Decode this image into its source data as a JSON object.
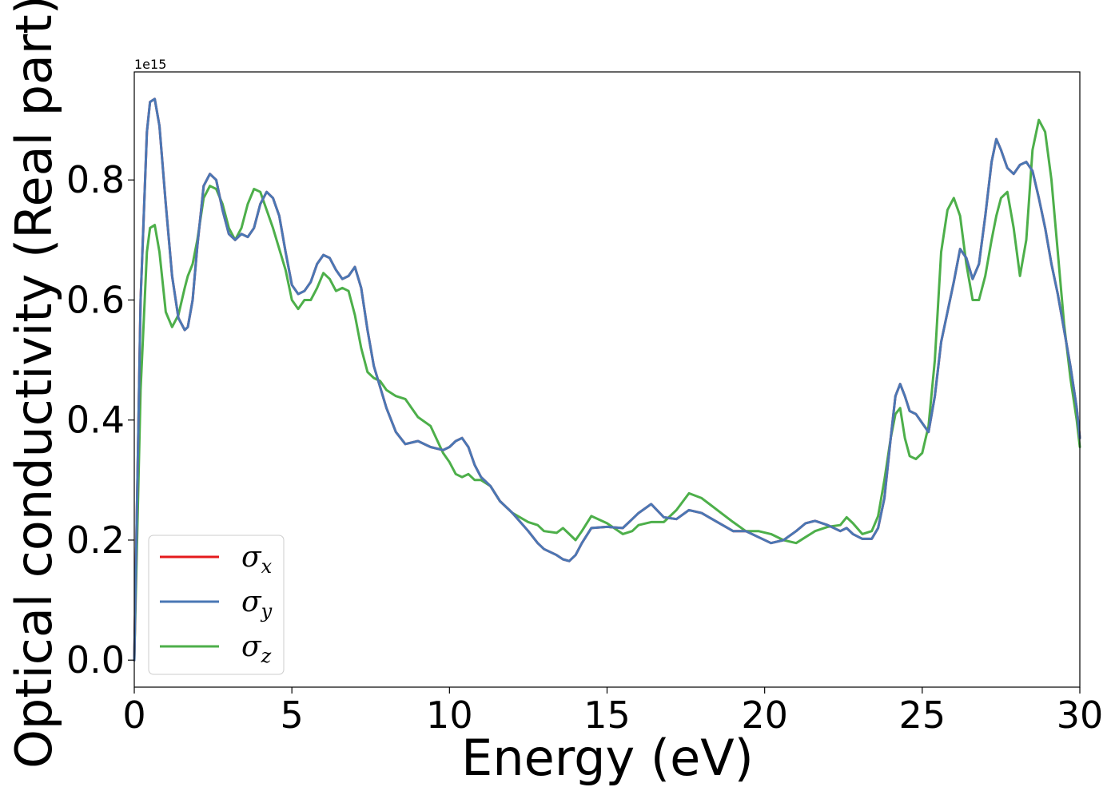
{
  "chart_data": {
    "type": "line",
    "title": "",
    "xlabel": "Energy (eV)",
    "ylabel": "Optical conductivity (Real part)",
    "y_offset_label": "1e15",
    "xlim": [
      0,
      30
    ],
    "ylim": [
      -0.045,
      0.98
    ],
    "x_ticks": [
      0,
      5,
      10,
      15,
      20,
      25,
      30
    ],
    "x_tick_labels": [
      "0",
      "5",
      "10",
      "15",
      "20",
      "25",
      "30"
    ],
    "y_ticks": [
      0.0,
      0.2,
      0.4,
      0.6,
      0.8
    ],
    "y_tick_labels": [
      "0.0",
      "0.2",
      "0.4",
      "0.6",
      "0.8"
    ],
    "grid": false,
    "legend_position": "lower-left",
    "x": [
      0,
      0.2,
      0.4,
      0.5,
      0.65,
      0.8,
      1.0,
      1.2,
      1.4,
      1.6,
      1.7,
      1.85,
      2.0,
      2.2,
      2.4,
      2.6,
      2.8,
      3.0,
      3.2,
      3.4,
      3.6,
      3.8,
      4.0,
      4.2,
      4.4,
      4.6,
      4.8,
      5.0,
      5.2,
      5.4,
      5.6,
      5.8,
      6.0,
      6.2,
      6.4,
      6.6,
      6.8,
      7.0,
      7.2,
      7.4,
      7.6,
      7.8,
      8.0,
      8.3,
      8.6,
      9.0,
      9.4,
      9.8,
      10.0,
      10.2,
      10.4,
      10.6,
      10.8,
      11.0,
      11.3,
      11.6,
      12.0,
      12.5,
      12.8,
      13.0,
      13.4,
      13.6,
      13.8,
      14.0,
      14.2,
      14.5,
      15.0,
      15.5,
      15.8,
      16.0,
      16.4,
      16.8,
      17.2,
      17.6,
      18.0,
      18.5,
      19.0,
      19.4,
      19.8,
      20.2,
      20.6,
      21.0,
      21.3,
      21.6,
      22.0,
      22.4,
      22.6,
      22.8,
      23.1,
      23.4,
      23.6,
      23.8,
      24.0,
      24.15,
      24.3,
      24.45,
      24.6,
      24.8,
      25.0,
      25.2,
      25.4,
      25.6,
      25.8,
      26.0,
      26.2,
      26.4,
      26.6,
      26.8,
      27.0,
      27.2,
      27.35,
      27.5,
      27.7,
      27.9,
      28.1,
      28.3,
      28.5,
      28.7,
      28.9,
      29.1,
      29.3,
      29.5,
      29.7,
      29.9,
      30.0
    ],
    "series": [
      {
        "name": "σx",
        "color": "#e41a1c",
        "values": [
          0.0,
          0.6,
          0.88,
          0.93,
          0.935,
          0.89,
          0.76,
          0.64,
          0.57,
          0.55,
          0.555,
          0.6,
          0.69,
          0.79,
          0.81,
          0.8,
          0.75,
          0.71,
          0.7,
          0.71,
          0.705,
          0.72,
          0.76,
          0.78,
          0.77,
          0.74,
          0.68,
          0.625,
          0.61,
          0.615,
          0.63,
          0.66,
          0.675,
          0.67,
          0.65,
          0.635,
          0.64,
          0.655,
          0.62,
          0.55,
          0.49,
          0.455,
          0.42,
          0.38,
          0.36,
          0.365,
          0.355,
          0.35,
          0.355,
          0.365,
          0.37,
          0.355,
          0.325,
          0.305,
          0.29,
          0.265,
          0.245,
          0.215,
          0.195,
          0.185,
          0.175,
          0.168,
          0.165,
          0.175,
          0.195,
          0.22,
          0.222,
          0.22,
          0.235,
          0.245,
          0.26,
          0.238,
          0.235,
          0.25,
          0.245,
          0.23,
          0.215,
          0.215,
          0.205,
          0.195,
          0.2,
          0.215,
          0.228,
          0.232,
          0.225,
          0.215,
          0.22,
          0.21,
          0.202,
          0.202,
          0.22,
          0.27,
          0.37,
          0.44,
          0.46,
          0.44,
          0.415,
          0.41,
          0.395,
          0.38,
          0.44,
          0.53,
          0.58,
          0.63,
          0.685,
          0.67,
          0.635,
          0.66,
          0.74,
          0.83,
          0.868,
          0.85,
          0.82,
          0.81,
          0.825,
          0.83,
          0.815,
          0.77,
          0.72,
          0.66,
          0.61,
          0.55,
          0.49,
          0.42,
          0.37
        ]
      },
      {
        "name": "σy",
        "color": "#4a77b4",
        "values": [
          0.0,
          0.6,
          0.88,
          0.93,
          0.935,
          0.89,
          0.76,
          0.64,
          0.57,
          0.55,
          0.555,
          0.6,
          0.69,
          0.79,
          0.81,
          0.8,
          0.75,
          0.71,
          0.7,
          0.71,
          0.705,
          0.72,
          0.76,
          0.78,
          0.77,
          0.74,
          0.68,
          0.625,
          0.61,
          0.615,
          0.63,
          0.66,
          0.675,
          0.67,
          0.65,
          0.635,
          0.64,
          0.655,
          0.62,
          0.55,
          0.49,
          0.455,
          0.42,
          0.38,
          0.36,
          0.365,
          0.355,
          0.35,
          0.355,
          0.365,
          0.37,
          0.355,
          0.325,
          0.305,
          0.29,
          0.265,
          0.245,
          0.215,
          0.195,
          0.185,
          0.175,
          0.168,
          0.165,
          0.175,
          0.195,
          0.22,
          0.222,
          0.22,
          0.235,
          0.245,
          0.26,
          0.238,
          0.235,
          0.25,
          0.245,
          0.23,
          0.215,
          0.215,
          0.205,
          0.195,
          0.2,
          0.215,
          0.228,
          0.232,
          0.225,
          0.215,
          0.22,
          0.21,
          0.202,
          0.202,
          0.22,
          0.27,
          0.37,
          0.44,
          0.46,
          0.44,
          0.415,
          0.41,
          0.395,
          0.38,
          0.44,
          0.53,
          0.58,
          0.63,
          0.685,
          0.67,
          0.635,
          0.66,
          0.74,
          0.83,
          0.868,
          0.85,
          0.82,
          0.81,
          0.825,
          0.83,
          0.815,
          0.77,
          0.72,
          0.66,
          0.61,
          0.55,
          0.49,
          0.42,
          0.37
        ]
      },
      {
        "name": "σz",
        "color": "#4daf4a",
        "values": [
          0.0,
          0.45,
          0.68,
          0.72,
          0.725,
          0.68,
          0.58,
          0.555,
          0.575,
          0.62,
          0.64,
          0.66,
          0.7,
          0.77,
          0.79,
          0.785,
          0.76,
          0.72,
          0.7,
          0.72,
          0.76,
          0.785,
          0.78,
          0.75,
          0.72,
          0.685,
          0.65,
          0.6,
          0.585,
          0.6,
          0.6,
          0.62,
          0.645,
          0.635,
          0.615,
          0.62,
          0.615,
          0.575,
          0.52,
          0.48,
          0.47,
          0.465,
          0.45,
          0.44,
          0.435,
          0.405,
          0.39,
          0.345,
          0.33,
          0.31,
          0.305,
          0.31,
          0.3,
          0.3,
          0.29,
          0.265,
          0.245,
          0.23,
          0.225,
          0.215,
          0.212,
          0.22,
          0.21,
          0.2,
          0.215,
          0.24,
          0.228,
          0.21,
          0.215,
          0.225,
          0.23,
          0.23,
          0.25,
          0.278,
          0.27,
          0.25,
          0.23,
          0.215,
          0.215,
          0.21,
          0.2,
          0.195,
          0.205,
          0.215,
          0.222,
          0.225,
          0.238,
          0.228,
          0.21,
          0.215,
          0.24,
          0.3,
          0.37,
          0.41,
          0.42,
          0.37,
          0.34,
          0.335,
          0.345,
          0.39,
          0.5,
          0.68,
          0.75,
          0.77,
          0.74,
          0.66,
          0.6,
          0.6,
          0.64,
          0.7,
          0.74,
          0.77,
          0.78,
          0.72,
          0.64,
          0.7,
          0.85,
          0.9,
          0.88,
          0.8,
          0.68,
          0.56,
          0.47,
          0.4,
          0.355
        ]
      }
    ]
  }
}
